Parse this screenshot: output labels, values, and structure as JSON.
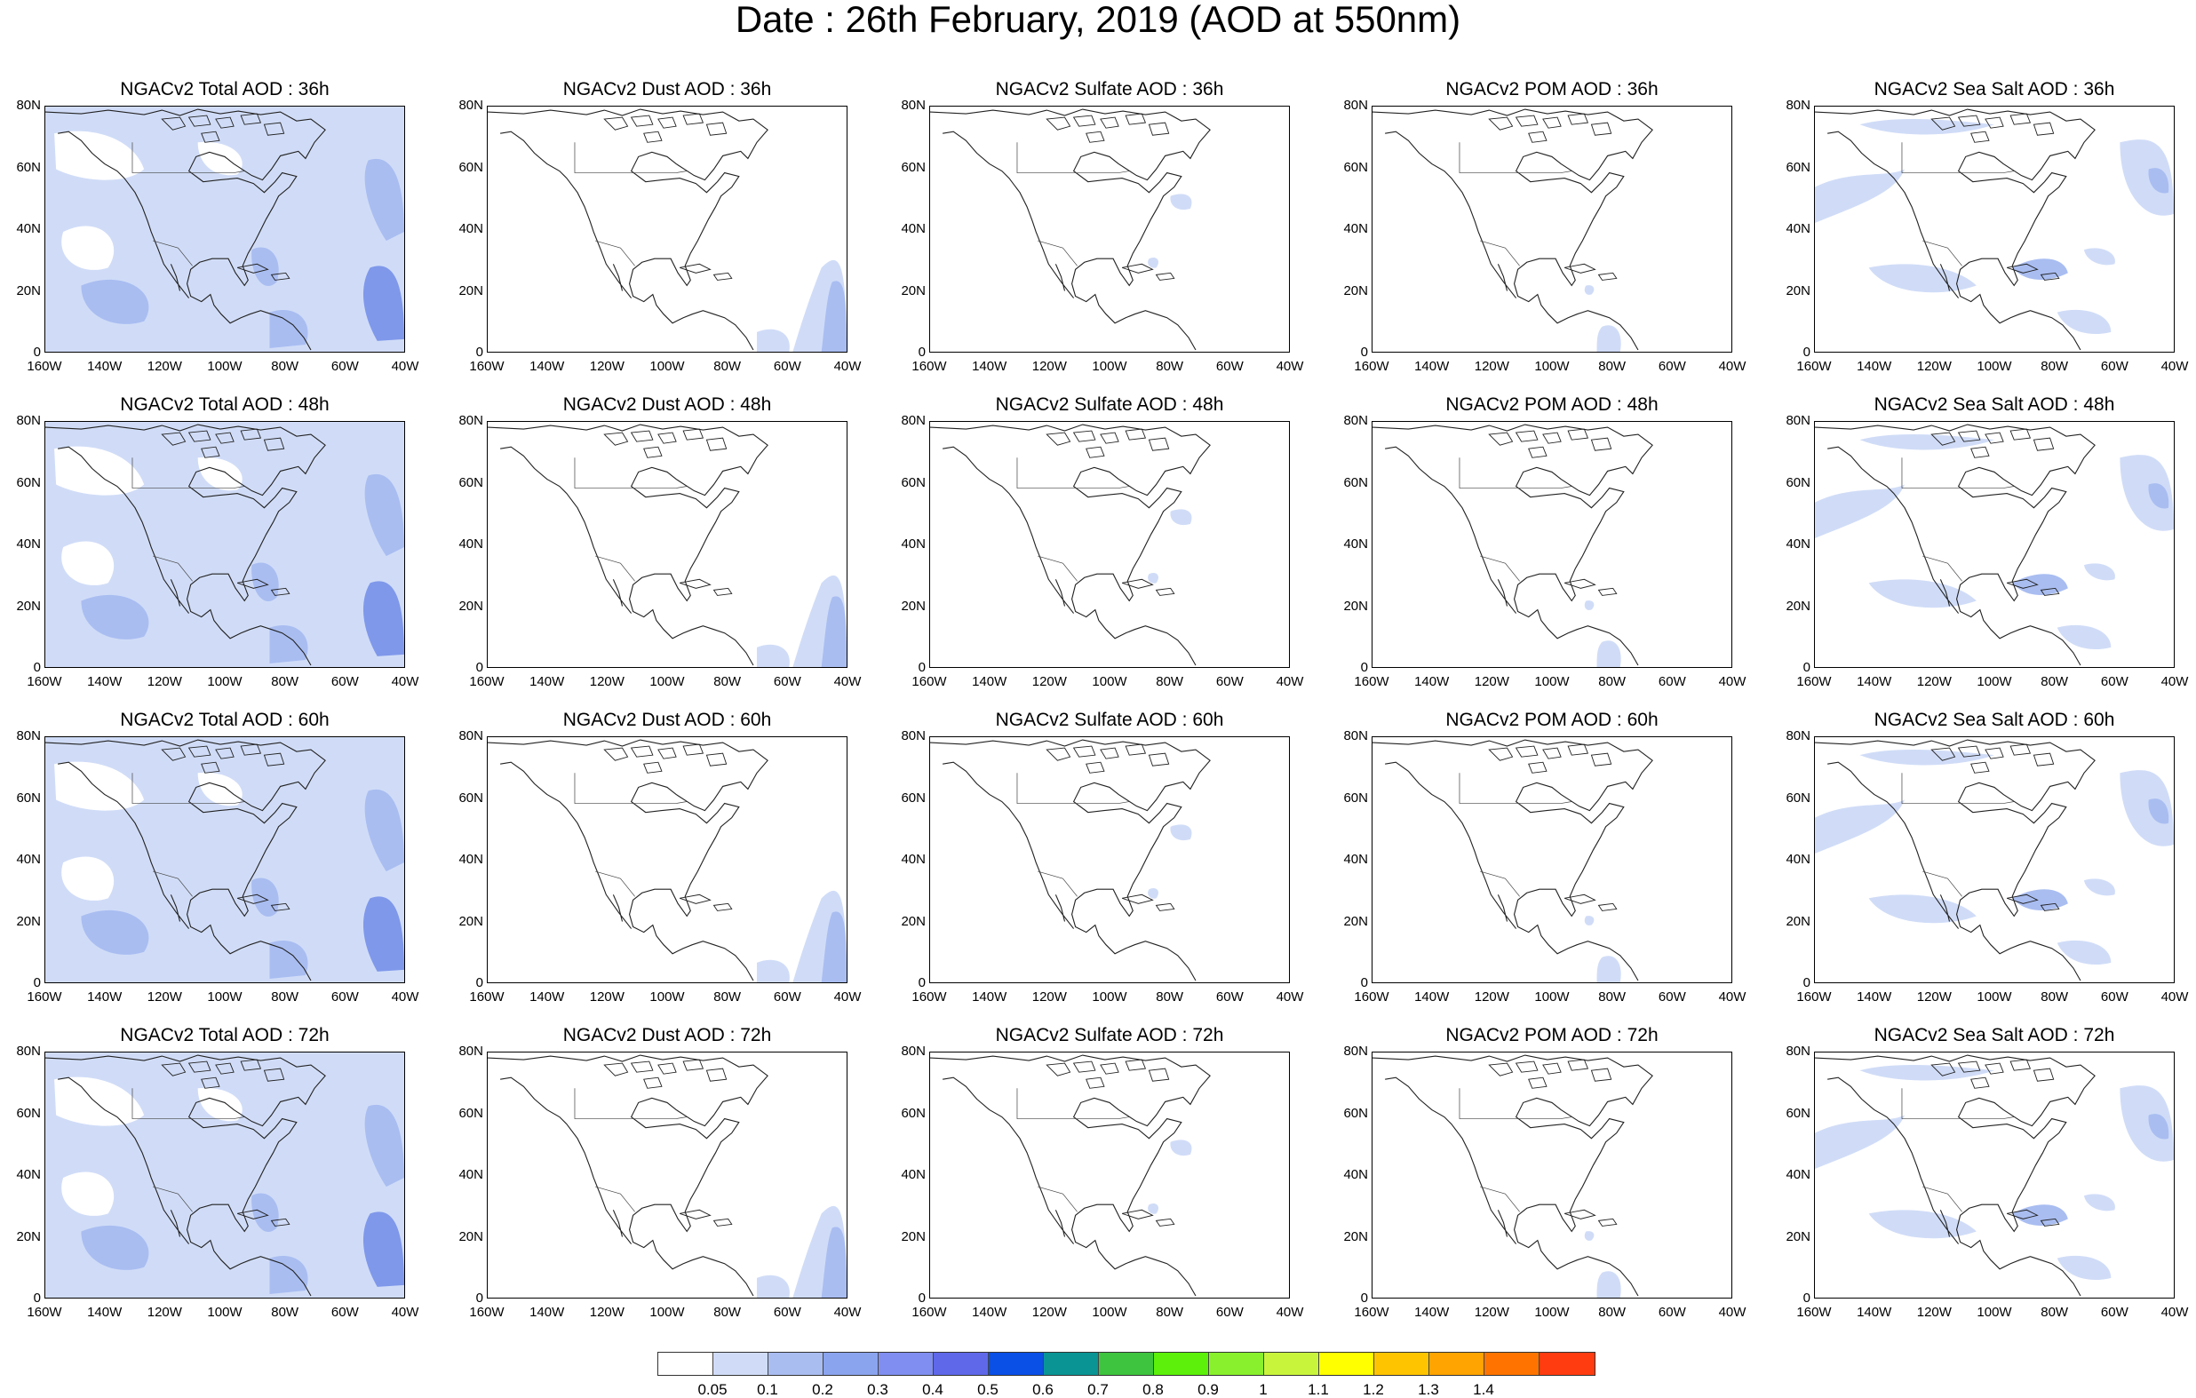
{
  "title": "Date : 26th February, 2019 (AOD at 550nm)",
  "colors": {
    "coast": "#222222",
    "low": "#d0dcf7",
    "mid": "#a9bdf1",
    "high": "#7f98ea"
  },
  "panels": [
    {
      "title": "NGACv2 Total AOD : 36h",
      "species": "total",
      "lead": "36h"
    },
    {
      "title": "NGACv2 Dust AOD : 36h",
      "species": "dust",
      "lead": "36h"
    },
    {
      "title": "NGACv2 Sulfate AOD : 36h",
      "species": "sulfate",
      "lead": "36h"
    },
    {
      "title": "NGACv2 POM AOD : 36h",
      "species": "pom",
      "lead": "36h"
    },
    {
      "title": "NGACv2 Sea Salt AOD : 36h",
      "species": "seasalt",
      "lead": "36h"
    },
    {
      "title": "NGACv2 Total AOD : 48h",
      "species": "total",
      "lead": "48h"
    },
    {
      "title": "NGACv2 Dust AOD : 48h",
      "species": "dust",
      "lead": "48h"
    },
    {
      "title": "NGACv2 Sulfate AOD : 48h",
      "species": "sulfate",
      "lead": "48h"
    },
    {
      "title": "NGACv2 POM AOD : 48h",
      "species": "pom",
      "lead": "48h"
    },
    {
      "title": "NGACv2 Sea Salt AOD : 48h",
      "species": "seasalt",
      "lead": "48h"
    },
    {
      "title": "NGACv2 Total AOD : 60h",
      "species": "total",
      "lead": "60h"
    },
    {
      "title": "NGACv2 Dust AOD : 60h",
      "species": "dust",
      "lead": "60h"
    },
    {
      "title": "NGACv2 Sulfate AOD : 60h",
      "species": "sulfate",
      "lead": "60h"
    },
    {
      "title": "NGACv2 POM AOD : 60h",
      "species": "pom",
      "lead": "60h"
    },
    {
      "title": "NGACv2 Sea Salt AOD : 60h",
      "species": "seasalt",
      "lead": "60h"
    },
    {
      "title": "NGACv2 Total AOD : 72h",
      "species": "total",
      "lead": "72h"
    },
    {
      "title": "NGACv2 Dust AOD : 72h",
      "species": "dust",
      "lead": "72h"
    },
    {
      "title": "NGACv2 Sulfate AOD : 72h",
      "species": "sulfate",
      "lead": "72h"
    },
    {
      "title": "NGACv2 POM AOD : 72h",
      "species": "pom",
      "lead": "72h"
    },
    {
      "title": "NGACv2 Sea Salt  AOD : 72h",
      "species": "seasalt",
      "lead": "72h"
    }
  ],
  "lat_ticks": [
    "80N",
    "60N",
    "40N",
    "20N",
    "0"
  ],
  "lon_ticks": [
    "160W",
    "140W",
    "120W",
    "100W",
    "80W",
    "60W",
    "40W"
  ],
  "colorbar": {
    "colors": [
      "#ffffff",
      "#d0dcf7",
      "#a9bdf1",
      "#8aa4ee",
      "#7f8ef0",
      "#5f68e8",
      "#0a4fe6",
      "#0a9494",
      "#3ec43e",
      "#5cf00a",
      "#88f02c",
      "#c9f43c",
      "#ffff00",
      "#ffc400",
      "#ffa400",
      "#ff7400",
      "#ff3c10"
    ],
    "labels": [
      "0.05",
      "0.1",
      "0.2",
      "0.3",
      "0.4",
      "0.5",
      "0.6",
      "0.7",
      "0.8",
      "0.9",
      "1",
      "1.1",
      "1.2",
      "1.3",
      "1.4"
    ]
  }
}
